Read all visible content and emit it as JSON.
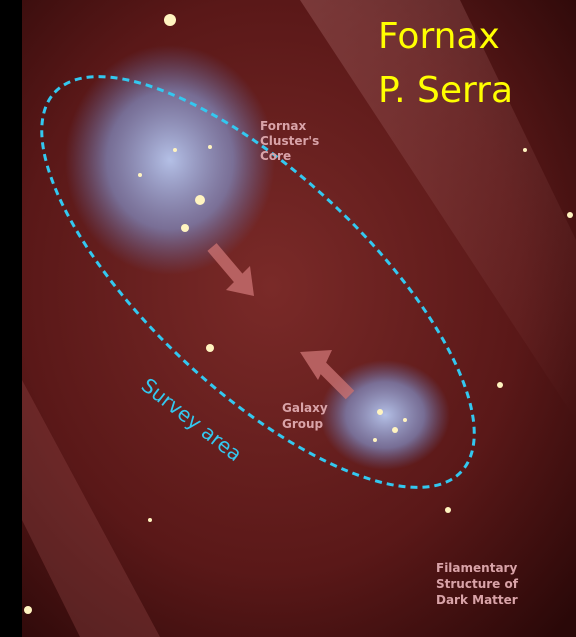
{
  "title": {
    "lines": [
      "Fornax",
      "P. Serra"
    ]
  },
  "labels": {
    "cluster_core": [
      "Fornax",
      "Cluster's",
      "Core"
    ],
    "galaxy_group": [
      "Galaxy",
      "Group"
    ],
    "filament": [
      "Filamentary",
      "Structure of",
      "Dark Matter"
    ],
    "survey_area": "Survey area"
  }
}
